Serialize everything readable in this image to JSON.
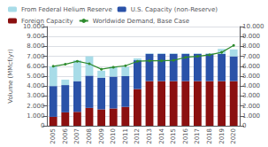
{
  "chart_data": {
    "type": "bar",
    "ylabel": "Volume (MMcf/yr)",
    "categories": [
      "2005",
      "2006",
      "2007",
      "2008",
      "2009",
      "2010",
      "2011",
      "2012",
      "2013",
      "2014",
      "2015",
      "2016",
      "2017",
      "2018",
      "2019",
      "2020"
    ],
    "stacked": true,
    "series": [
      {
        "name": "Foreign Capacity",
        "type": "bar",
        "color": "#8B1010",
        "values": [
          900,
          1350,
          1400,
          1800,
          1650,
          1750,
          1900,
          3700,
          4500,
          4500,
          4500,
          4500,
          4500,
          4500,
          4500,
          4500
        ]
      },
      {
        "name": "U.S. Capacity (non-Reserve)",
        "type": "bar",
        "color": "#2A52A8",
        "values": [
          3100,
          2750,
          3100,
          3250,
          3200,
          3200,
          3100,
          2900,
          2750,
          2750,
          2750,
          2750,
          2750,
          2750,
          2750,
          2500
        ]
      },
      {
        "name": "From Federal Helium Reserve",
        "type": "bar",
        "color": "#A8DCE8",
        "values": [
          2000,
          550,
          2100,
          1950,
          700,
          1000,
          950,
          200,
          50,
          50,
          50,
          50,
          50,
          50,
          500,
          700
        ]
      },
      {
        "name": "Worldwide Demand, Base Case",
        "type": "line",
        "color": "#2E8B2E",
        "marker": "circle",
        "values": [
          6000,
          6200,
          6500,
          6250,
          5700,
          5900,
          6050,
          6500,
          6550,
          6550,
          6600,
          6900,
          7000,
          7150,
          7400,
          8100
        ]
      }
    ],
    "ylim": [
      0,
      10000
    ],
    "yticks": [
      0,
      {
        "value": 1000,
        "label": "1.000"
      },
      {
        "value": 2000,
        "label": "2.000"
      },
      {
        "value": 3000,
        "label": "3.000"
      },
      {
        "value": 4000,
        "label": "4.000"
      },
      {
        "value": 5000,
        "label": "5.000"
      },
      {
        "value": 6000,
        "label": "6.000"
      },
      {
        "value": 7000,
        "label": "7.000"
      },
      {
        "value": 8000,
        "label": "8.000"
      },
      {
        "value": 9000,
        "label": "9.000"
      },
      {
        "value": 10000,
        "label": "10.000"
      }
    ],
    "y2lim": [
      0,
      10000
    ],
    "y2ticks": [
      0,
      {
        "value": 1000,
        "label": "1.000"
      },
      {
        "value": 2000,
        "label": "2.000"
      },
      {
        "value": 3000,
        "label": "3.000"
      },
      {
        "value": 4000,
        "label": "4.000"
      },
      {
        "value": 5000,
        "label": "5.000"
      },
      {
        "value": 6000,
        "label": "6.000"
      },
      {
        "value": 7000,
        "label": "7.000"
      },
      {
        "value": 8000,
        "label": "8.000"
      },
      {
        "value": 9000,
        "label": "9.000"
      },
      {
        "value": 10000,
        "label": "10.000"
      }
    ],
    "grid": true,
    "legend": "upper left"
  }
}
